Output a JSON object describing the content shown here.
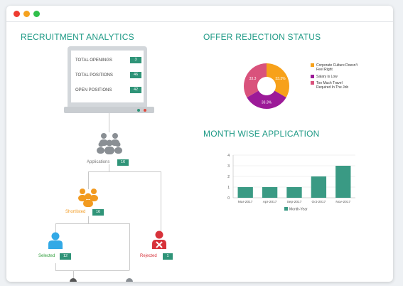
{
  "window": {
    "traffic_lights": [
      "#ee3b30",
      "#f5a21f",
      "#2fbf4a"
    ]
  },
  "analytics": {
    "title": "RECRUITMENT ANALYTICS",
    "stats": [
      {
        "label": "TOTAL OPENINGS",
        "value": "3"
      },
      {
        "label": "TOTAL POSITIONS",
        "value": "46"
      },
      {
        "label": "OPEN POSITIONS",
        "value": "42"
      }
    ],
    "tree": {
      "applications": {
        "label": "Applications",
        "count": "16"
      },
      "shortlisted": {
        "label": "Shortlisted",
        "count": "16"
      },
      "selected": {
        "label": "Selected",
        "count": "12"
      },
      "rejected": {
        "label": "Rejected",
        "count": "1"
      }
    },
    "colors": {
      "teal": "#2f9478",
      "gray": "#8a8f94",
      "orange": "#f29a1f",
      "blue": "#33a9e6",
      "red": "#d7323a",
      "green": "#2e9d3a"
    }
  },
  "offer_rejection": {
    "title": "OFFER REJECTION STATUS"
  },
  "month_wise": {
    "title": "MONTH WISE APPLICATION"
  },
  "chart_data": [
    {
      "type": "pie",
      "title": "OFFER REJECTION STATUS",
      "labels": [
        "Corporate Culture Doesn't Feel Right",
        "Salary is Low",
        "Too Much Travel Required In The Job"
      ],
      "values": [
        33.3,
        33.3,
        33.3
      ],
      "slice_labels": [
        "33.3%",
        "33.3%",
        "33.3"
      ],
      "colors": [
        "#f7a11a",
        "#9c1a98",
        "#d9527c"
      ],
      "legend": "right"
    },
    {
      "type": "bar",
      "title": "MONTH WISE APPLICATION",
      "categories": [
        "Mar-2017",
        "Apr-2017",
        "Sep-2017",
        "Oct-2017",
        "Nov-2017"
      ],
      "series": [
        {
          "name": "Month-Year",
          "values": [
            1,
            1,
            1,
            2,
            3
          ]
        }
      ],
      "ylim": [
        0,
        4
      ],
      "yticks": [
        "0",
        "1",
        "2",
        "3",
        "4"
      ],
      "grid": true,
      "legend": "bottom",
      "color": "#3a9a84"
    }
  ]
}
